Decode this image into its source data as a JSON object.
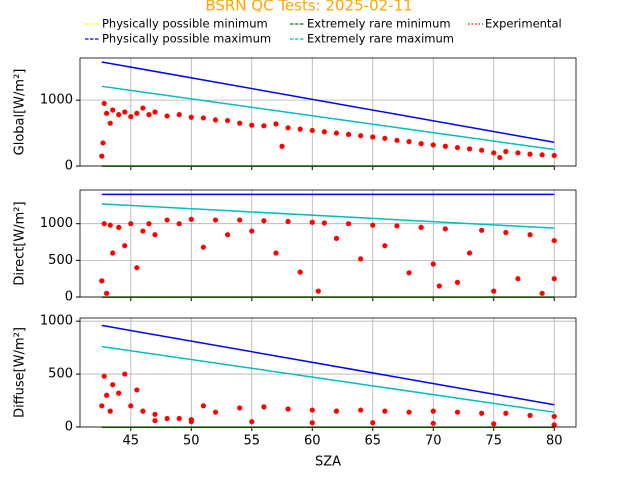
{
  "chart_data": [
    {
      "type": "line",
      "title": "BSRN QC Tests: 2025-02-11",
      "ylabel": "Global[W/m²]",
      "xlim": [
        40.8,
        81.8
      ],
      "xticks": [
        45,
        50,
        55,
        60,
        65,
        70,
        75,
        80
      ],
      "ylim": [
        0,
        1640
      ],
      "yticks": [
        0,
        1000
      ],
      "grid": true,
      "series": [
        {
          "name": "Physically possible minimum",
          "color": "#ffff00",
          "x": [
            42.6,
            80
          ],
          "values": [
            -4,
            -4
          ]
        },
        {
          "name": "Physically possible maximum",
          "color": "#0000ff",
          "x": [
            42.6,
            80
          ],
          "values": [
            1580,
            360
          ]
        },
        {
          "name": "Extremely rare minimum",
          "color": "#008000",
          "x": [
            42.6,
            80
          ],
          "values": [
            -2,
            -2
          ]
        },
        {
          "name": "Extremely rare maximum",
          "color": "#00bfbf",
          "x": [
            42.6,
            80
          ],
          "values": [
            1210,
            250
          ]
        },
        {
          "name": "Experimental",
          "color": "#ff0000",
          "marker": "dot",
          "x": [
            42.6,
            42.7,
            42.8,
            43,
            43.3,
            43.5,
            44,
            44.5,
            45,
            45.5,
            46,
            46.5,
            47,
            48,
            49,
            50,
            51,
            52,
            53,
            54,
            55,
            56,
            57,
            57.5,
            58,
            59,
            60,
            61,
            62,
            63,
            64,
            65,
            66,
            67,
            68,
            69,
            70,
            71,
            72,
            73,
            74,
            75,
            75.5,
            76,
            77,
            78,
            79,
            80
          ],
          "values": [
            150,
            350,
            950,
            800,
            650,
            850,
            780,
            820,
            750,
            800,
            880,
            780,
            820,
            760,
            780,
            740,
            730,
            700,
            690,
            650,
            620,
            610,
            640,
            300,
            580,
            560,
            540,
            520,
            500,
            480,
            460,
            440,
            420,
            390,
            370,
            340,
            320,
            300,
            280,
            260,
            240,
            200,
            130,
            220,
            200,
            180,
            170,
            160
          ]
        }
      ]
    },
    {
      "type": "line",
      "ylabel": "Direct[W/m²]",
      "xlim": [
        40.8,
        81.8
      ],
      "xticks": [
        45,
        50,
        55,
        60,
        65,
        70,
        75,
        80
      ],
      "ylim": [
        0,
        1460
      ],
      "yticks": [
        0,
        500,
        1000
      ],
      "grid": true,
      "series": [
        {
          "color": "#ffff00",
          "x": [
            42.6,
            80
          ],
          "values": [
            -4,
            -4
          ]
        },
        {
          "color": "#0000ff",
          "x": [
            42.6,
            80
          ],
          "values": [
            1400,
            1400
          ]
        },
        {
          "color": "#008000",
          "x": [
            42.6,
            80
          ],
          "values": [
            -2,
            -2
          ]
        },
        {
          "color": "#00bfbf",
          "x": [
            42.6,
            80
          ],
          "values": [
            1270,
            940
          ]
        },
        {
          "color": "#ff0000",
          "marker": "dot",
          "x": [
            42.6,
            42.8,
            43,
            43.3,
            43.5,
            44,
            44.5,
            45,
            45.5,
            46,
            46.5,
            47,
            48,
            49,
            50,
            51,
            52,
            53,
            54,
            55,
            56,
            57,
            58,
            59,
            60,
            60.5,
            61,
            62,
            63,
            64,
            65,
            66,
            67,
            68,
            69,
            70,
            70.5,
            71,
            72,
            73,
            74,
            75,
            76,
            77,
            78,
            79,
            80,
            80
          ],
          "values": [
            220,
            1000,
            50,
            980,
            600,
            950,
            700,
            1000,
            400,
            900,
            1000,
            850,
            1050,
            1000,
            1060,
            680,
            1050,
            850,
            1050,
            900,
            1040,
            600,
            1030,
            340,
            1020,
            80,
            1010,
            800,
            1000,
            520,
            980,
            700,
            970,
            330,
            950,
            450,
            150,
            930,
            200,
            600,
            910,
            80,
            880,
            250,
            850,
            50,
            770,
            250
          ]
        }
      ]
    },
    {
      "type": "line",
      "ylabel": "Diffuse[W/m²]",
      "xlabel": "SZA",
      "xlim": [
        40.8,
        81.8
      ],
      "xticks": [
        45,
        50,
        55,
        60,
        65,
        70,
        75,
        80
      ],
      "ylim": [
        0,
        1030
      ],
      "yticks": [
        0,
        500,
        1000
      ],
      "grid": true,
      "series": [
        {
          "color": "#ffff00",
          "x": [
            42.6,
            80
          ],
          "values": [
            -4,
            -4
          ]
        },
        {
          "color": "#0000ff",
          "x": [
            42.6,
            80
          ],
          "values": [
            960,
            210
          ]
        },
        {
          "color": "#008000",
          "x": [
            42.6,
            80
          ],
          "values": [
            -2,
            -2
          ]
        },
        {
          "color": "#00bfbf",
          "x": [
            42.6,
            80
          ],
          "values": [
            760,
            140
          ]
        },
        {
          "color": "#ff0000",
          "marker": "dot",
          "x": [
            42.6,
            42.8,
            43,
            43.3,
            43.5,
            44,
            44.5,
            45,
            45.5,
            46,
            47,
            48,
            49,
            50,
            51,
            52,
            54,
            56,
            58,
            60,
            62,
            64,
            66,
            68,
            70,
            72,
            74,
            76,
            78,
            80,
            47,
            50,
            55,
            60,
            65,
            70,
            75,
            80
          ],
          "values": [
            200,
            480,
            300,
            150,
            400,
            320,
            500,
            200,
            350,
            150,
            120,
            80,
            80,
            70,
            200,
            140,
            180,
            190,
            170,
            160,
            150,
            160,
            150,
            140,
            150,
            140,
            130,
            130,
            110,
            100,
            60,
            50,
            50,
            40,
            40,
            35,
            30,
            20
          ]
        }
      ]
    }
  ]
}
